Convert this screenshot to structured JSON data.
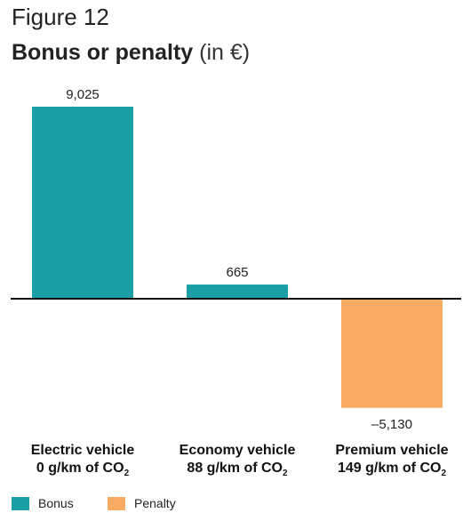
{
  "figure_label": "Figure 12",
  "title_bold": "Bonus or penalty",
  "title_unit": " (in €)",
  "chart_data": {
    "type": "bar",
    "categories": [
      {
        "line1": "Electric vehicle",
        "line2_pre": "0 g/km of CO",
        "line2_sub": "2"
      },
      {
        "line1": "Economy vehicle",
        "line2_pre": "88 g/km of CO",
        "line2_sub": "2"
      },
      {
        "line1": "Premium vehicle",
        "line2_pre": "149 g/km of CO",
        "line2_sub": "2"
      }
    ],
    "values": [
      9025,
      665,
      -5130
    ],
    "value_labels": [
      "9,025",
      "665",
      "–5,130"
    ],
    "series_assignment": [
      "Bonus",
      "Bonus",
      "Penalty"
    ],
    "legend": [
      {
        "name": "Bonus",
        "color": "#1a9fa6"
      },
      {
        "name": "Penalty",
        "color": "#f9ab63"
      }
    ],
    "ylim": [
      -6000,
      10000
    ],
    "grid": false,
    "legend_position": "bottom-left"
  }
}
